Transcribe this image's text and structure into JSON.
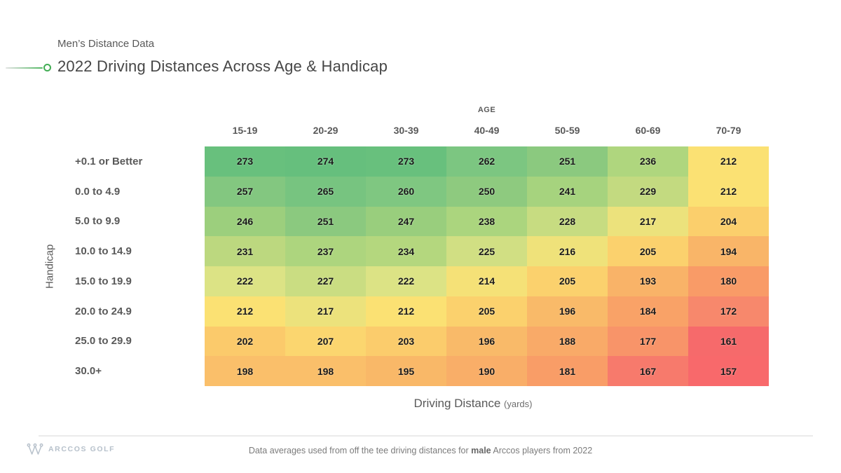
{
  "header": {
    "subtitle": "Men’s Distance Data",
    "title": "2022 Driving Distances Across Age & Handicap"
  },
  "accent": {
    "green": "#42ad54",
    "brand_gray_blue": "#b7c1cb"
  },
  "chart_data": {
    "type": "heatmap",
    "title": "2022 Driving Distances Across Age & Handicap",
    "x_group_label": "AGE",
    "columns": [
      "15-19",
      "20-29",
      "30-39",
      "40-49",
      "50-59",
      "60-69",
      "70-79"
    ],
    "rows": [
      "+0.1 or Better",
      "0.0 to 4.9",
      "5.0 to 9.9",
      "10.0 to 14.9",
      "15.0 to 19.9",
      "20.0 to 24.9",
      "25.0 to 29.9",
      "30.0+"
    ],
    "y_axis_label": "Handicap",
    "x_axis_label": "Driving Distance",
    "x_axis_unit": "(yards)",
    "values": [
      [
        273,
        274,
        273,
        262,
        251,
        236,
        212
      ],
      [
        257,
        265,
        260,
        250,
        241,
        229,
        212
      ],
      [
        246,
        251,
        247,
        238,
        228,
        217,
        204
      ],
      [
        231,
        237,
        234,
        225,
        216,
        205,
        194
      ],
      [
        222,
        227,
        222,
        214,
        205,
        193,
        180
      ],
      [
        212,
        217,
        212,
        205,
        196,
        184,
        172
      ],
      [
        202,
        207,
        203,
        196,
        188,
        177,
        161
      ],
      [
        198,
        198,
        195,
        190,
        181,
        167,
        157
      ]
    ],
    "value_range": [
      157,
      274
    ],
    "colormap": {
      "stops": [
        [
          157,
          "#F8696B"
        ],
        [
          161,
          "#F66A6B"
        ],
        [
          172,
          "#F7886C"
        ],
        [
          180,
          "#F99B67"
        ],
        [
          194,
          "#F9B568"
        ],
        [
          204,
          "#FBCF6C"
        ],
        [
          212,
          "#FBE173"
        ],
        [
          222,
          "#DCE385"
        ],
        [
          231,
          "#BCD87F"
        ],
        [
          236,
          "#AFD67E"
        ],
        [
          246,
          "#9CCF7D"
        ],
        [
          251,
          "#8BC97F"
        ],
        [
          262,
          "#7CC681"
        ],
        [
          274,
          "#66BF7D"
        ]
      ]
    }
  },
  "footer": {
    "brand": "ARCCOS GOLF",
    "note_prefix": "Data averages used from off the tee driving distances for ",
    "note_bold": "male",
    "note_suffix": " Arccos players from 2022"
  }
}
